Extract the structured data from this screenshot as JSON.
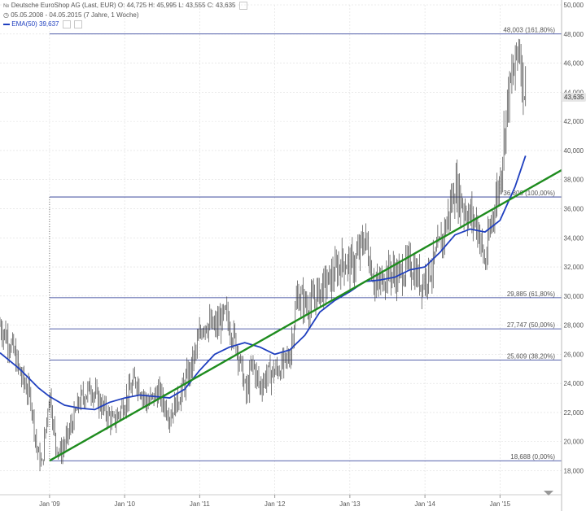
{
  "header": {
    "instrument_line": "Deutsche EuroShop AG (Last, EUR)  O: 44,725  H: 45,995  L: 43,555  C: 43,635",
    "range_line": "05.05.2008 - 04.05.2015 (7 Jahre, 1 Woche)",
    "ema_line": "EMA(50)  39,637"
  },
  "colors": {
    "candles": "#444444",
    "ema": "#1f3fbf",
    "trendline": "#1e8c1e",
    "fib_lines": "#1f2f8f",
    "grid": "#dddddd",
    "axis_text": "#555555"
  },
  "chart_data": {
    "type": "line",
    "title": "Deutsche EuroShop AG (Last, EUR)",
    "period": "05.05.2008 - 04.05.2015 (7 Jahre, 1 Woche)",
    "ylim": [
      16800,
      50000
    ],
    "y_ticks": [
      "18,000",
      "20,000",
      "22,000",
      "24,000",
      "26,000",
      "28,000",
      "30,000",
      "32,000",
      "34,000",
      "36,000",
      "38,000",
      "40,000",
      "42,000",
      "44,000",
      "46,000",
      "48,000",
      "50,000"
    ],
    "x_ticks": [
      "Jan '09",
      "Jan '10",
      "Jan '11",
      "Jan '12",
      "Jan '13",
      "Jan '14",
      "Jan '15"
    ],
    "x_tick_years": [
      2009,
      2010,
      2011,
      2012,
      2013,
      2014,
      2015
    ],
    "xlim": [
      2008.34,
      2015.82
    ],
    "current_price_label": "43,635",
    "series": [
      {
        "name": "Deutsche EuroShop AG (Last, EUR)",
        "style": "price",
        "x": [
          2008.34,
          2008.5,
          2008.62,
          2008.75,
          2008.83,
          2008.9,
          2008.95,
          2009.0,
          2009.08,
          2009.15,
          2009.25,
          2009.4,
          2009.55,
          2009.7,
          2009.85,
          2010.0,
          2010.15,
          2010.3,
          2010.45,
          2010.6,
          2010.75,
          2010.9,
          2011.05,
          2011.2,
          2011.35,
          2011.5,
          2011.62,
          2011.7,
          2011.8,
          2011.9,
          2012.0,
          2012.1,
          2012.2,
          2012.3,
          2012.45,
          2012.6,
          2012.75,
          2012.9,
          2013.05,
          2013.2,
          2013.35,
          2013.5,
          2013.65,
          2013.8,
          2013.95,
          2014.1,
          2014.25,
          2014.4,
          2014.55,
          2014.7,
          2014.8,
          2014.9,
          2015.0,
          2015.1,
          2015.2,
          2015.25,
          2015.3,
          2015.34
        ],
        "values": [
          28000,
          26500,
          24500,
          23000,
          19500,
          18300,
          21000,
          23500,
          19800,
          19200,
          20500,
          22800,
          23700,
          22400,
          21300,
          22700,
          24300,
          22600,
          23400,
          21800,
          23300,
          25300,
          28200,
          27800,
          28700,
          26500,
          23200,
          25400,
          23800,
          24600,
          24800,
          25200,
          25900,
          30000,
          29300,
          30400,
          31200,
          32400,
          32100,
          34000,
          30500,
          31700,
          31400,
          32200,
          30900,
          32000,
          34200,
          37500,
          35800,
          34900,
          32100,
          35600,
          38000,
          43500,
          45800,
          47500,
          45000,
          43635
        ]
      },
      {
        "name": "EMA(50)",
        "style": "ema",
        "x": [
          2008.34,
          2008.6,
          2008.85,
          2009.0,
          2009.2,
          2009.4,
          2009.6,
          2009.8,
          2010.0,
          2010.2,
          2010.4,
          2010.6,
          2010.8,
          2011.0,
          2011.2,
          2011.4,
          2011.6,
          2011.8,
          2012.0,
          2012.2,
          2012.4,
          2012.6,
          2012.8,
          2013.0,
          2013.2,
          2013.4,
          2013.6,
          2013.8,
          2014.0,
          2014.2,
          2014.4,
          2014.6,
          2014.8,
          2015.0,
          2015.2,
          2015.34
        ],
        "values": [
          26100,
          25000,
          23700,
          23100,
          22500,
          22300,
          22200,
          22700,
          23000,
          23200,
          23100,
          23000,
          23600,
          24900,
          26000,
          26500,
          26800,
          26500,
          26000,
          26300,
          27300,
          28900,
          29700,
          30300,
          31000,
          31100,
          31300,
          31800,
          32000,
          33000,
          34200,
          34600,
          34400,
          35200,
          37500,
          39637
        ]
      }
    ],
    "trendline": {
      "name": "support trendline",
      "points": [
        [
          2009.0,
          18688
        ],
        [
          2015.82,
          38650
        ]
      ]
    },
    "fibonacci_levels": [
      {
        "value": 48003,
        "label": "48,003 (161,80%)"
      },
      {
        "value": 36806,
        "label": "36,806 (100,00%)"
      },
      {
        "value": 29885,
        "label": "29,885 (61,80%)"
      },
      {
        "value": 27747,
        "label": "27,747 (50,00%)"
      },
      {
        "value": 25609,
        "label": "25,609 (38,20%)"
      },
      {
        "value": 18688,
        "label": "18,688 (0,00%)"
      }
    ],
    "fib_anchor_x": 2009.0,
    "grid": true,
    "legend": "top-left"
  }
}
